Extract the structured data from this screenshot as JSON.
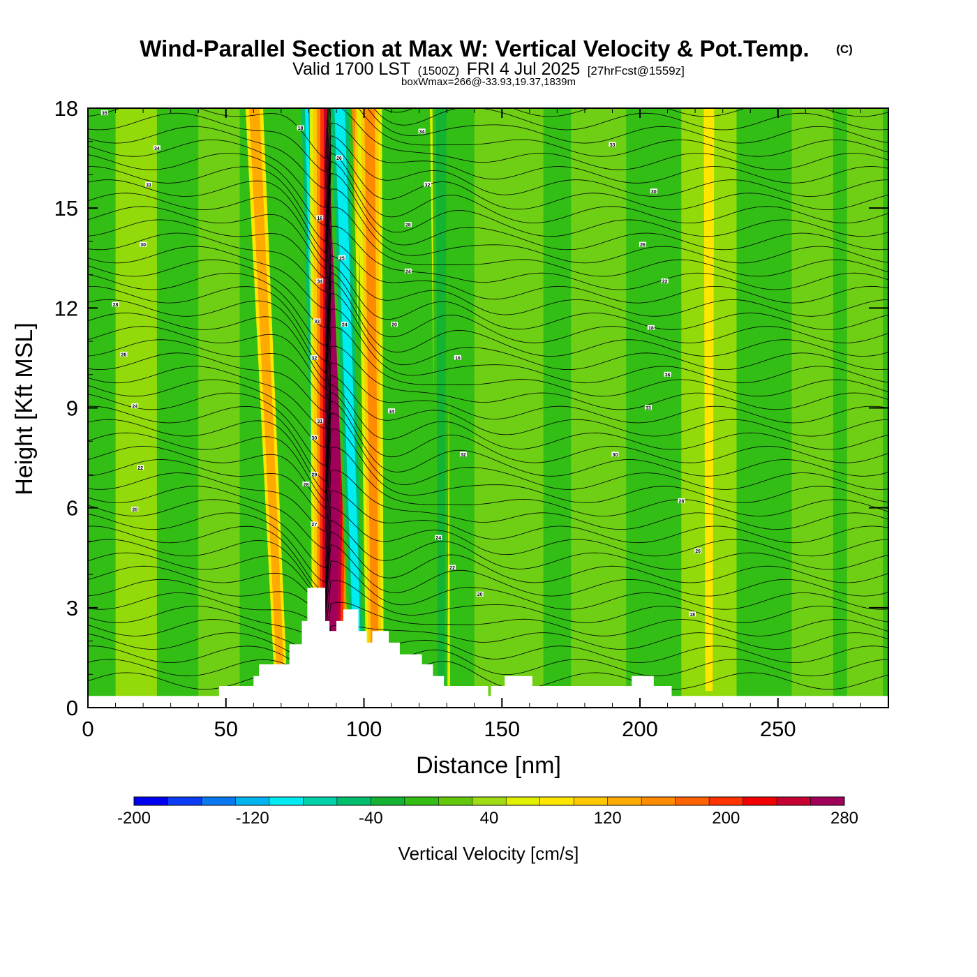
{
  "title": {
    "main": "Wind-Parallel Section at Max W: Vertical Velocity & Pot.Temp.",
    "copyright": "(C)",
    "valid_prefix": "Valid 1700 LST",
    "valid_utc": "(1500Z)",
    "valid_date": "FRI 4 Jul 2025",
    "forecast": "[27hrFcst@1559z]",
    "boxwmax": "boxWmax=266@-33.93,19.37,1839m"
  },
  "chart_data": {
    "type": "heatmap",
    "xlabel": "Distance [nm]",
    "ylabel": "Height [Kft MSL]",
    "xlim": [
      0,
      290
    ],
    "ylim": [
      0,
      18
    ],
    "x_ticks": [
      0,
      50,
      100,
      150,
      200,
      250
    ],
    "x_tick_labels": [
      "0",
      "50",
      "100",
      "150",
      "200",
      "250"
    ],
    "y_ticks": [
      0,
      3,
      6,
      9,
      12,
      15,
      18
    ],
    "y_tick_labels": [
      "0",
      "3",
      "6",
      "9",
      "12",
      "15",
      "18"
    ],
    "colorbar": {
      "label": "Vertical Velocity [cm/s]",
      "min": -200,
      "max": 280,
      "step": 20,
      "tick_values": [
        -200,
        -120,
        -40,
        40,
        120,
        200,
        280
      ],
      "tick_labels": [
        "-200",
        "-120",
        "-40",
        "40",
        "120",
        "200",
        "280"
      ],
      "colors": [
        "#0000f0",
        "#0a3cf5",
        "#0a78f0",
        "#00b4f0",
        "#00ecf0",
        "#00d2aa",
        "#00be6e",
        "#14b432",
        "#32be14",
        "#64c80a",
        "#a0dc14",
        "#e1f000",
        "#ffe600",
        "#ffc800",
        "#ffaa00",
        "#ff8c00",
        "#ff6400",
        "#ff3200",
        "#f00000",
        "#c80032",
        "#a0005a"
      ]
    },
    "vertical_velocity_features": [
      {
        "kind": "downdraft",
        "x_bottom": 86,
        "x_top": 83,
        "value": -200
      },
      {
        "kind": "updraft",
        "x_bottom": 88,
        "x_top": 90,
        "value": 266
      },
      {
        "kind": "downdraft",
        "x_bottom": 98,
        "x_top": 91,
        "value": -120
      },
      {
        "kind": "updraft",
        "x_bottom": 104,
        "x_top": 102,
        "value": 100
      },
      {
        "kind": "updraft",
        "x_bottom": 70,
        "x_top": 60,
        "value": 90
      },
      {
        "kind": "updraft",
        "x_bottom": 129,
        "x_top": 127,
        "value": 70
      },
      {
        "kind": "downdraft",
        "x_bottom": 128,
        "x_top": 128,
        "value": -60
      },
      {
        "kind": "updraft",
        "x_bottom": 225,
        "x_top": 225,
        "value": 40
      }
    ],
    "potential_temperature_contour_labels": [
      "35",
      "34",
      "33",
      "30",
      "28",
      "26",
      "24",
      "22",
      "20",
      "18",
      "34",
      "33",
      "32",
      "30",
      "28",
      "26",
      "24",
      "22",
      "20",
      "18",
      "16",
      "36",
      "34",
      "33",
      "32",
      "30",
      "28",
      "26",
      "24",
      "22",
      "20",
      "18",
      "16",
      "34",
      "33",
      "32",
      "31",
      "30",
      "29",
      "28",
      "27",
      "26",
      "25",
      "24"
    ],
    "terrain_kft": [
      [
        0,
        0.35
      ],
      [
        47.5,
        0.35
      ],
      [
        47.5,
        0.65
      ],
      [
        53.5,
        0.65
      ],
      [
        60,
        0.65
      ],
      [
        60,
        0.95
      ],
      [
        62,
        0.95
      ],
      [
        62,
        1.3
      ],
      [
        73,
        1.3
      ],
      [
        73,
        1.9
      ],
      [
        77.5,
        1.9
      ],
      [
        77.5,
        2.6
      ],
      [
        79.5,
        2.6
      ],
      [
        79.5,
        3.6
      ],
      [
        86,
        3.6
      ],
      [
        86,
        2.6
      ],
      [
        87.5,
        2.6
      ],
      [
        87.5,
        2.3
      ],
      [
        90,
        2.3
      ],
      [
        90,
        2.6
      ],
      [
        92.5,
        2.6
      ],
      [
        92.5,
        2.95
      ],
      [
        98,
        2.95
      ],
      [
        98,
        2.3
      ],
      [
        101,
        2.3
      ],
      [
        101,
        1.95
      ],
      [
        103,
        1.95
      ],
      [
        103,
        2.3
      ],
      [
        109,
        2.3
      ],
      [
        109,
        1.95
      ],
      [
        113,
        1.95
      ],
      [
        113,
        1.6
      ],
      [
        121,
        1.6
      ],
      [
        121,
        1.3
      ],
      [
        125,
        1.3
      ],
      [
        125,
        0.95
      ],
      [
        129,
        0.95
      ],
      [
        129,
        0.65
      ],
      [
        145,
        0.65
      ],
      [
        145,
        0.35
      ],
      [
        146,
        0.35
      ],
      [
        146,
        0.65
      ],
      [
        151,
        0.65
      ],
      [
        151,
        0.95
      ],
      [
        161,
        0.95
      ],
      [
        161,
        0.65
      ],
      [
        197,
        0.65
      ],
      [
        197,
        0.95
      ],
      [
        205,
        0.95
      ],
      [
        205,
        0.65
      ],
      [
        211.5,
        0.65
      ],
      [
        211.5,
        0.35
      ],
      [
        290,
        0.35
      ]
    ]
  }
}
